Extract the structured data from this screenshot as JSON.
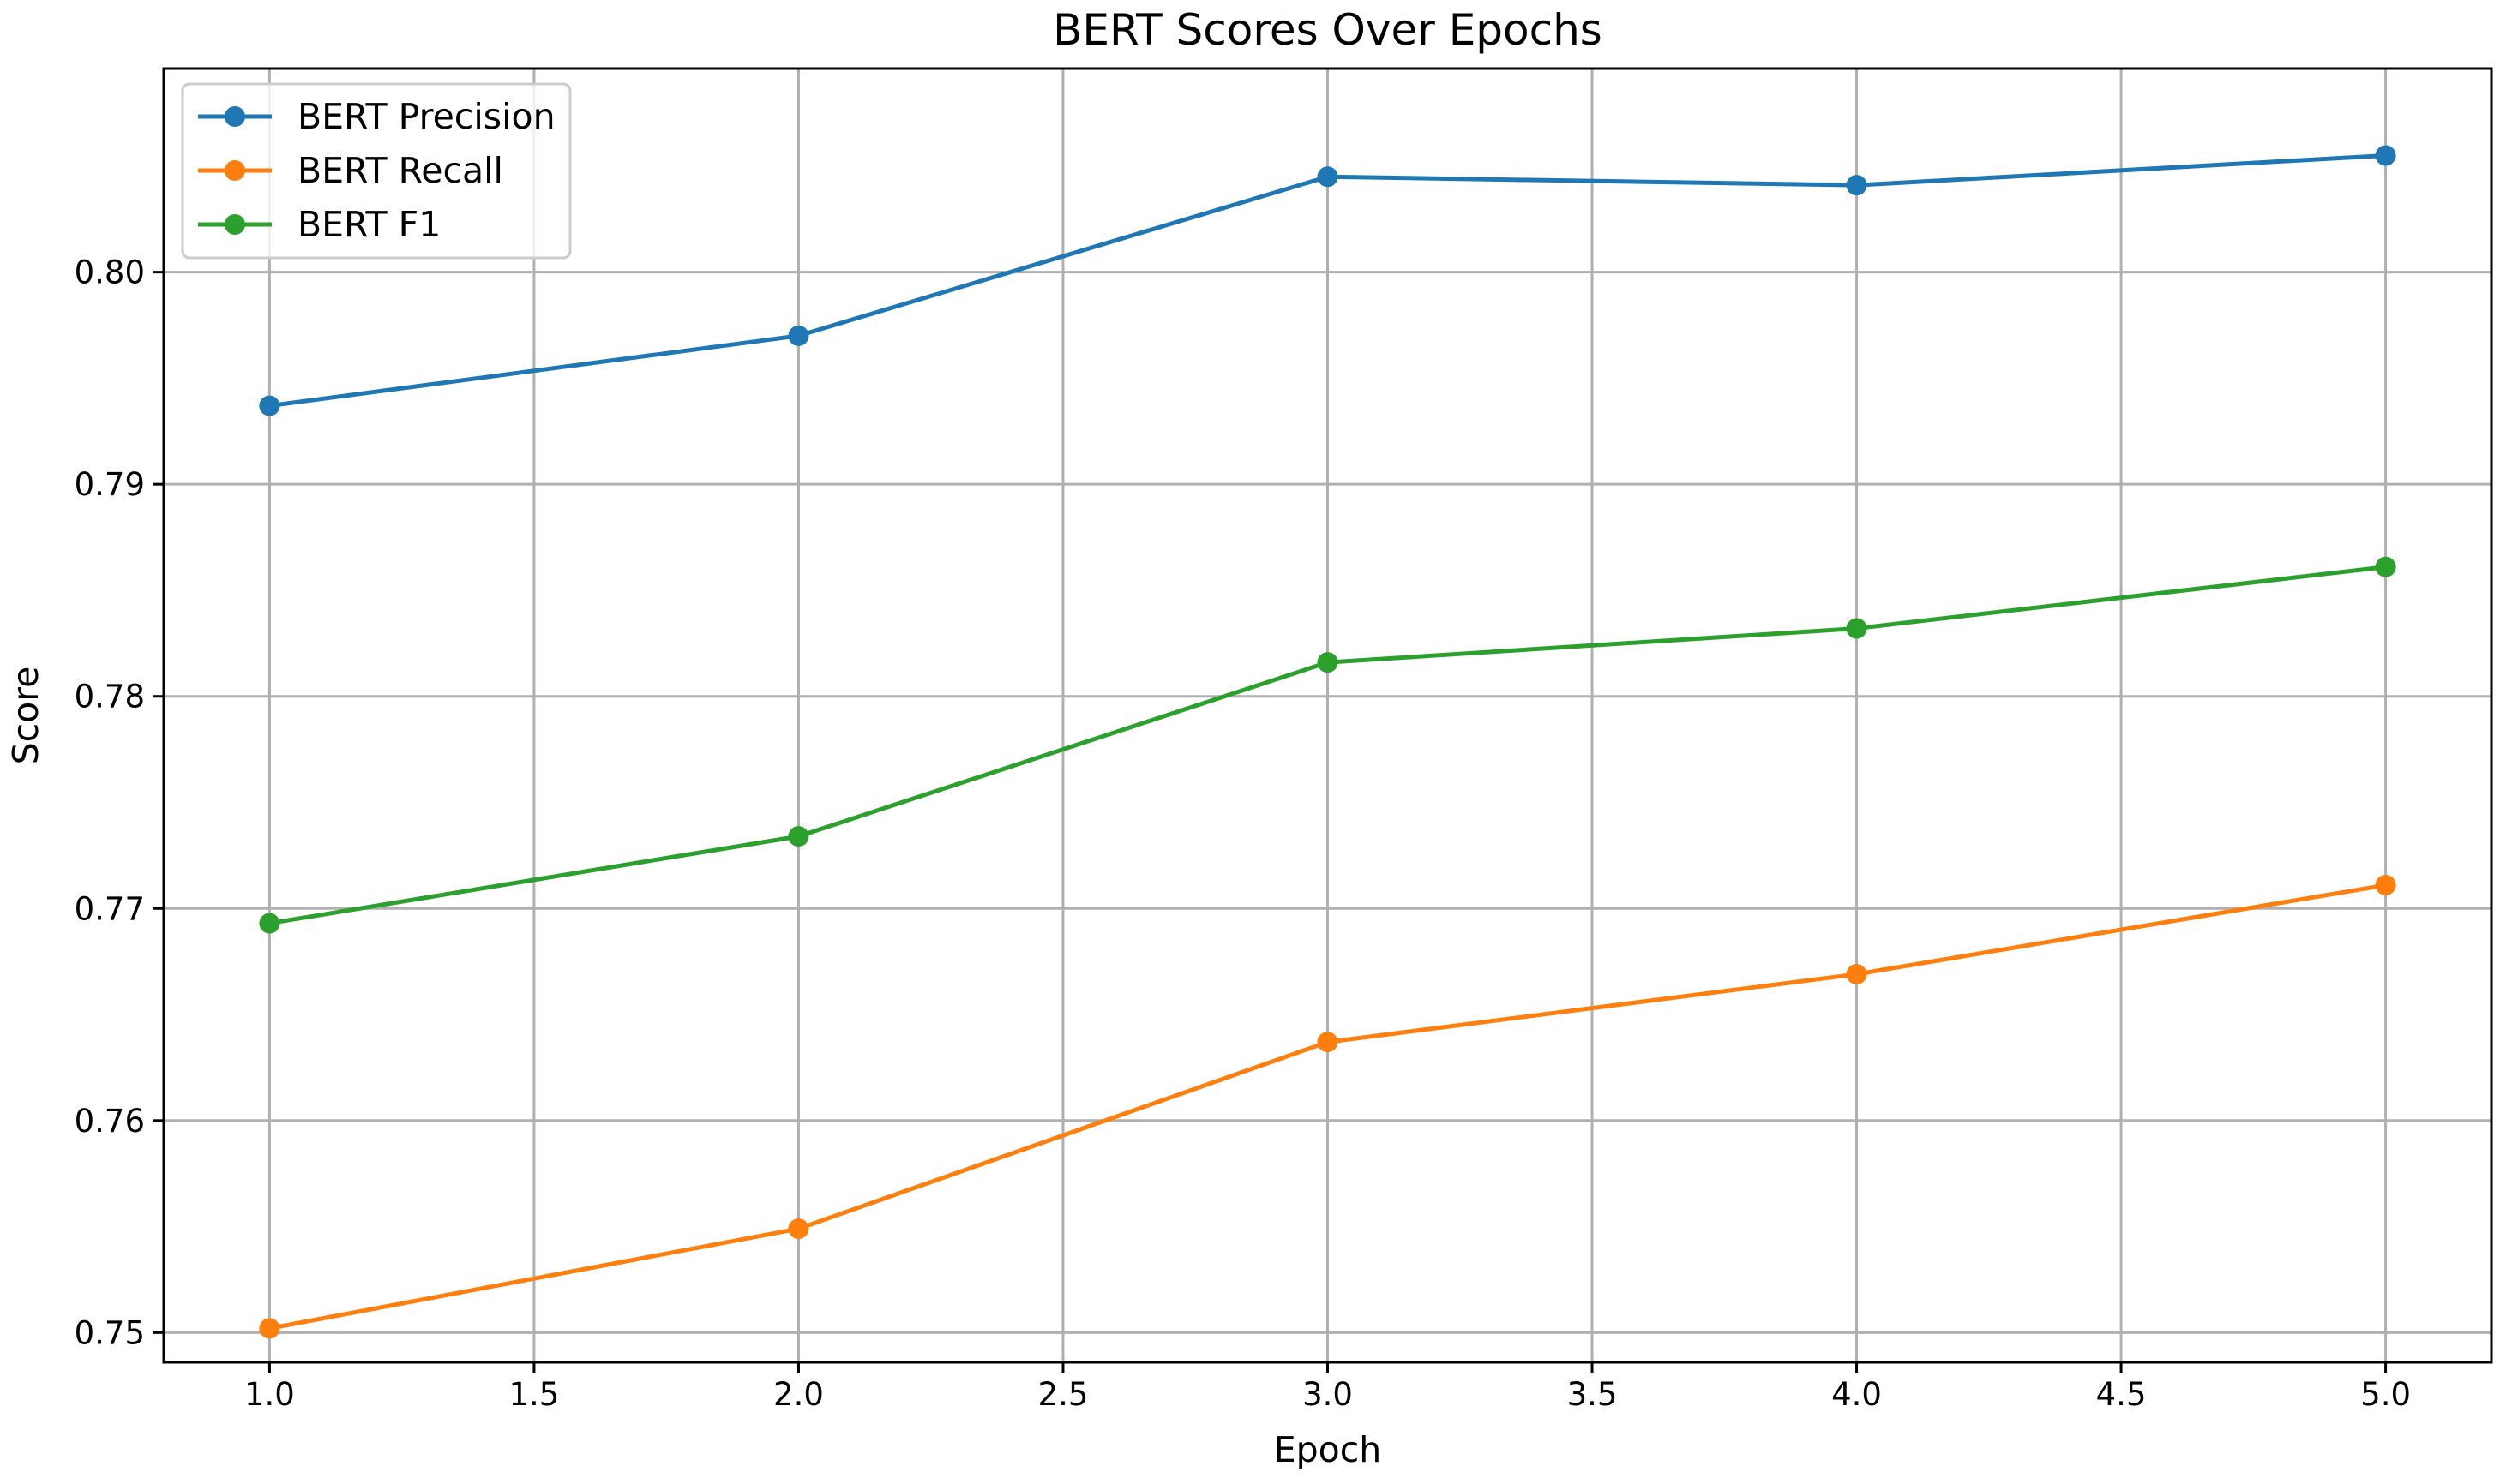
{
  "chart_data": {
    "type": "line",
    "title": "BERT Scores Over Epochs",
    "xlabel": "Epoch",
    "ylabel": "Score",
    "x": [
      1.0,
      2.0,
      3.0,
      4.0,
      5.0
    ],
    "xlim": [
      0.8,
      5.2
    ],
    "ylim": [
      0.7486,
      0.8096
    ],
    "xticks": [
      1.0,
      1.5,
      2.0,
      2.5,
      3.0,
      3.5,
      4.0,
      4.5,
      5.0
    ],
    "xtick_labels": [
      "1.0",
      "1.5",
      "2.0",
      "2.5",
      "3.0",
      "3.5",
      "4.0",
      "4.5",
      "5.0"
    ],
    "yticks": [
      0.75,
      0.76,
      0.77,
      0.78,
      0.79,
      0.8
    ],
    "ytick_labels": [
      "0.75",
      "0.76",
      "0.77",
      "0.78",
      "0.79",
      "0.80"
    ],
    "grid": true,
    "legend_position": "top-left",
    "series": [
      {
        "name": "BERT Precision",
        "color": "#1f77b4",
        "values": [
          0.7937,
          0.797,
          0.8045,
          0.8041,
          0.8055
        ]
      },
      {
        "name": "BERT Recall",
        "color": "#ff7f0e",
        "values": [
          0.7502,
          0.7549,
          0.7637,
          0.7669,
          0.7711
        ]
      },
      {
        "name": "BERT F1",
        "color": "#2ca02c",
        "values": [
          0.7693,
          0.7734,
          0.7816,
          0.7832,
          0.7861
        ]
      }
    ]
  }
}
